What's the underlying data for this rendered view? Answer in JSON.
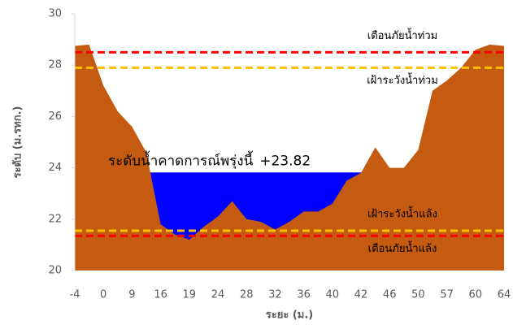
{
  "chart_data": {
    "type": "area",
    "y_label": "ระดับ (ม.รทก.)",
    "x_label": "ระยะ (ม.)",
    "categories": [
      "-4",
      null,
      "0",
      null,
      "9",
      null,
      "16",
      null,
      "19",
      null,
      "24",
      null,
      "28",
      null,
      "32",
      null,
      "36",
      null,
      "40",
      null,
      "42",
      null,
      "46",
      null,
      "50",
      null,
      "57",
      null,
      "60",
      null,
      "64"
    ],
    "values": [
      28.75,
      28.8,
      27.2,
      26.2,
      25.6,
      24.6,
      21.8,
      21.4,
      21.2,
      21.7,
      22.1,
      22.7,
      22.0,
      21.9,
      21.6,
      21.9,
      22.3,
      22.3,
      22.6,
      23.5,
      23.8,
      24.8,
      24.0,
      24.0,
      24.7,
      27.0,
      27.4,
      27.9,
      28.6,
      28.8,
      28.75
    ],
    "color": "#c55a11",
    "water": {
      "label": "ระดับน้ำคาดการณ์พรุ่งนี้",
      "value": 23.82,
      "value_label": "+23.82",
      "color": "#0000ff"
    },
    "thresholds": [
      {
        "label": "เตือนภัยน้ำท่วม",
        "value": 28.5,
        "color": "#ff0000",
        "label_side": "above"
      },
      {
        "label": "เฝ้าระวังน้ำท่วม",
        "value": 27.9,
        "color": "#ffc000",
        "label_side": "below"
      },
      {
        "label": "เฝ้าระวังน้ำแล้ง",
        "value": 21.55,
        "color": "#ffc000",
        "label_side": "above"
      },
      {
        "label": "เตือนภัยน้ำแล้ง",
        "value": 21.35,
        "color": "#ff0000",
        "label_side": "below"
      }
    ],
    "ylim": [
      20,
      30
    ],
    "yticks": [
      20,
      22,
      24,
      26,
      28,
      30
    ]
  }
}
